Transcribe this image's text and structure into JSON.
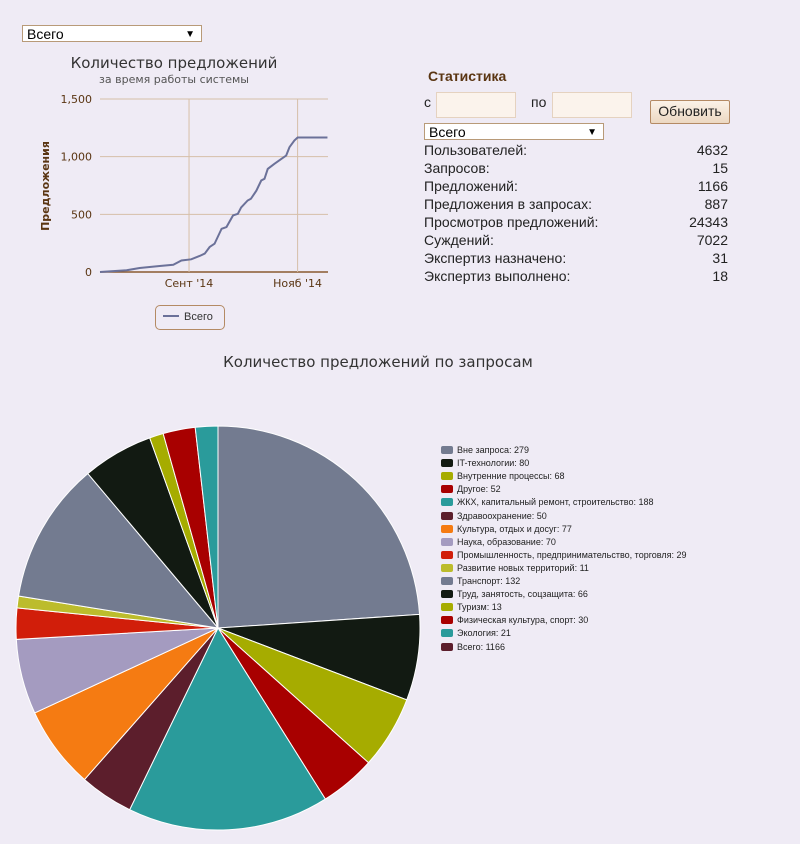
{
  "top_filter": {
    "selected": "Всего"
  },
  "stats": {
    "title": "Статистика",
    "from_label": "с",
    "to_label": "по",
    "from_value": "",
    "to_value": "",
    "refresh_button": "Обновить",
    "filter_selected": "Всего",
    "rows": [
      {
        "label": "Пользователей:",
        "value": "4632"
      },
      {
        "label": "Запросов:",
        "value": "15"
      },
      {
        "label": "Предложений:",
        "value": "1166"
      },
      {
        "label": "Предложения в запросах:",
        "value": "887"
      },
      {
        "label": "Просмотров предложений:",
        "value": "24343"
      },
      {
        "label": "Суждений:",
        "value": "7022"
      },
      {
        "label": "Экспертиз назначено:",
        "value": "31"
      },
      {
        "label": "Экспертиз выполнено:",
        "value": "18"
      }
    ]
  },
  "chart_data": [
    {
      "type": "line",
      "title": "Количество предложений",
      "subtitle": "за время работы системы",
      "ylabel": "Предложения",
      "xlabel": "",
      "ylim": [
        0,
        1500
      ],
      "yticks": [
        {
          "v": 0,
          "label": "0"
        },
        {
          "v": 500,
          "label": "500"
        },
        {
          "v": 1000,
          "label": "1,000"
        },
        {
          "v": 1500,
          "label": "1,500"
        }
      ],
      "x_units": "months relative to Sept '14",
      "xlim": [
        -1.64,
        2.56
      ],
      "xticks": [
        {
          "v": 0,
          "label": "Сент '14"
        },
        {
          "v": 2,
          "label": "Нояб '14"
        }
      ],
      "legend": [
        "Всего"
      ],
      "color": "#6b7199",
      "series": [
        {
          "name": "Всего",
          "points": [
            [
              -1.64,
              0
            ],
            [
              -1.15,
              15
            ],
            [
              -0.91,
              35
            ],
            [
              -0.54,
              52
            ],
            [
              -0.29,
              63
            ],
            [
              -0.14,
              100
            ],
            [
              0.04,
              110
            ],
            [
              0.2,
              140
            ],
            [
              0.29,
              160
            ],
            [
              0.38,
              217
            ],
            [
              0.47,
              245
            ],
            [
              0.6,
              375
            ],
            [
              0.69,
              390
            ],
            [
              0.81,
              490
            ],
            [
              0.9,
              505
            ],
            [
              0.96,
              560
            ],
            [
              1.08,
              620
            ],
            [
              1.14,
              635
            ],
            [
              1.24,
              705
            ],
            [
              1.33,
              793
            ],
            [
              1.39,
              808
            ],
            [
              1.45,
              894
            ],
            [
              1.57,
              937
            ],
            [
              1.7,
              980
            ],
            [
              1.79,
              1010
            ],
            [
              1.85,
              1082
            ],
            [
              1.94,
              1140
            ],
            [
              2.0,
              1166
            ],
            [
              2.55,
              1166
            ]
          ]
        }
      ]
    },
    {
      "type": "pie",
      "title": "Количество предложений по запросам",
      "slices": [
        {
          "label": "Вне запроса",
          "value": 279,
          "color": "#737b90"
        },
        {
          "label": "IT-технологии",
          "value": 80,
          "color": "#121a12"
        },
        {
          "label": "Внутренние процессы",
          "value": 68,
          "color": "#a6ac00"
        },
        {
          "label": "Другое",
          "value": 52,
          "color": "#a80000"
        },
        {
          "label": "ЖКХ, капитальный ремонт, строительство",
          "value": 188,
          "color": "#2a9b9b"
        },
        {
          "label": "Здравоохранение",
          "value": 50,
          "color": "#5c1e2c"
        },
        {
          "label": "Культура, отдых и досуг",
          "value": 77,
          "color": "#f57b12"
        },
        {
          "label": "Наука, образование",
          "value": 70,
          "color": "#a49bc0"
        },
        {
          "label": "Промышленность, предпринимательство, торговля",
          "value": 29,
          "color": "#d11e0a"
        },
        {
          "label": "Развитие новых территорий",
          "value": 11,
          "color": "#bcbc2c"
        },
        {
          "label": "Транспорт",
          "value": 132,
          "color": "#737b90"
        },
        {
          "label": "Труд, занятость, соцзащита",
          "value": 66,
          "color": "#121a12"
        },
        {
          "label": "Туризм",
          "value": 13,
          "color": "#a6ac00"
        },
        {
          "label": "Физическая культура, спорт",
          "value": 30,
          "color": "#a80000"
        },
        {
          "label": "Экология",
          "value": 21,
          "color": "#2a9b9b"
        }
      ],
      "legend_extra": {
        "label": "Всего",
        "value": 1166,
        "color": "#5c1e2c"
      },
      "legend_entries": [
        "Вне запроса: 279",
        "IT-технологии: 80",
        "Внутренние процессы: 68",
        "Другое: 52",
        "ЖКХ, капитальный ремонт, строительство: 188",
        "Здравоохранение: 50",
        "Культура, отдых и досуг: 77",
        "Наука, образование: 70",
        "Промышленность, предпринимательство, торговля: 29",
        "Развитие новых территорий: 11",
        "Транспорт: 132",
        "Труд, занятость, соцзащита: 66",
        "Туризм: 13",
        "Физическая культура, спорт: 30",
        "Экология: 21",
        "Всего: 1166"
      ]
    }
  ]
}
